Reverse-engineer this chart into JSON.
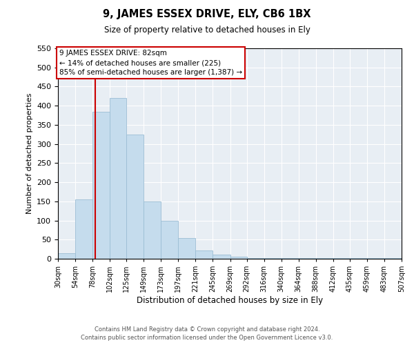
{
  "title": "9, JAMES ESSEX DRIVE, ELY, CB6 1BX",
  "subtitle": "Size of property relative to detached houses in Ely",
  "xlabel": "Distribution of detached houses by size in Ely",
  "ylabel": "Number of detached properties",
  "bar_values": [
    15,
    155,
    385,
    420,
    325,
    150,
    100,
    55,
    22,
    10,
    5,
    2,
    1,
    1,
    1,
    1,
    1,
    1,
    1,
    1
  ],
  "bin_edges": [
    30,
    54,
    78,
    102,
    125,
    149,
    173,
    197,
    221,
    245,
    269,
    292,
    316,
    340,
    364,
    388,
    412,
    435,
    459,
    483,
    507
  ],
  "tick_labels": [
    "30sqm",
    "54sqm",
    "78sqm",
    "102sqm",
    "125sqm",
    "149sqm",
    "173sqm",
    "197sqm",
    "221sqm",
    "245sqm",
    "269sqm",
    "292sqm",
    "316sqm",
    "340sqm",
    "364sqm",
    "388sqm",
    "412sqm",
    "435sqm",
    "459sqm",
    "483sqm",
    "507sqm"
  ],
  "bar_color": "#c5dced",
  "bar_edge_color": "#9bbdd4",
  "vline_x": 82,
  "vline_color": "#cc0000",
  "ylim": [
    0,
    550
  ],
  "yticks": [
    0,
    50,
    100,
    150,
    200,
    250,
    300,
    350,
    400,
    450,
    500,
    550
  ],
  "annotation_title": "9 JAMES ESSEX DRIVE: 82sqm",
  "annotation_line1": "← 14% of detached houses are smaller (225)",
  "annotation_line2": "85% of semi-detached houses are larger (1,387) →",
  "annotation_box_color": "#ffffff",
  "annotation_box_edge": "#cc0000",
  "background_color": "#e8eef4",
  "footer1": "Contains HM Land Registry data © Crown copyright and database right 2024.",
  "footer2": "Contains public sector information licensed under the Open Government Licence v3.0."
}
